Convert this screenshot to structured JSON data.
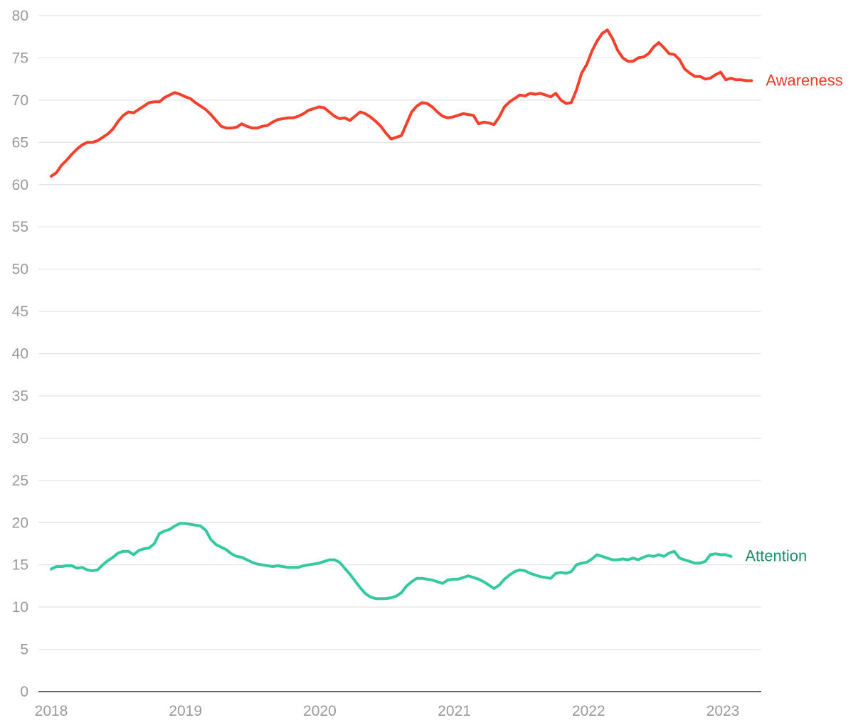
{
  "chart_data": {
    "type": "line",
    "title": "",
    "xlabel": "",
    "ylabel": "",
    "ylim": [
      0,
      80
    ],
    "xlim": [
      "2018-01-01",
      "2023-03-31"
    ],
    "yticks": [
      "0",
      "5",
      "10",
      "15",
      "20",
      "25",
      "30",
      "35",
      "40",
      "45",
      "50",
      "55",
      "60",
      "65",
      "70",
      "75",
      "80"
    ],
    "xticks": [
      {
        "date": "2018-01-01",
        "label": "2018"
      },
      {
        "date": "2019-01-01",
        "label": "2019"
      },
      {
        "date": "2020-01-01",
        "label": "2020"
      },
      {
        "date": "2021-01-01",
        "label": "2021"
      },
      {
        "date": "2022-01-01",
        "label": "2022"
      },
      {
        "date": "2023-01-01",
        "label": "2023"
      }
    ],
    "grid": "horizontal",
    "series": [
      {
        "name": "Awareness",
        "color": "#f5402c",
        "label_color": "#e83a27",
        "points": [
          [
            "2018-01-01",
            61.0
          ],
          [
            "2018-01-15",
            61.4
          ],
          [
            "2018-01-29",
            62.3
          ],
          [
            "2018-02-12",
            62.9
          ],
          [
            "2018-02-26",
            63.6
          ],
          [
            "2018-03-12",
            64.2
          ],
          [
            "2018-03-26",
            64.7
          ],
          [
            "2018-04-09",
            65.0
          ],
          [
            "2018-04-23",
            65.0
          ],
          [
            "2018-05-07",
            65.2
          ],
          [
            "2018-05-21",
            65.6
          ],
          [
            "2018-06-04",
            66.0
          ],
          [
            "2018-06-18",
            66.6
          ],
          [
            "2018-07-02",
            67.5
          ],
          [
            "2018-07-16",
            68.2
          ],
          [
            "2018-07-30",
            68.6
          ],
          [
            "2018-08-13",
            68.5
          ],
          [
            "2018-08-27",
            68.9
          ],
          [
            "2018-09-10",
            69.3
          ],
          [
            "2018-09-24",
            69.7
          ],
          [
            "2018-10-08",
            69.8
          ],
          [
            "2018-10-22",
            69.8
          ],
          [
            "2018-11-05",
            70.3
          ],
          [
            "2018-11-19",
            70.6
          ],
          [
            "2018-12-03",
            70.9
          ],
          [
            "2018-12-17",
            70.7
          ],
          [
            "2018-12-31",
            70.4
          ],
          [
            "2019-01-14",
            70.2
          ],
          [
            "2019-01-28",
            69.7
          ],
          [
            "2019-02-11",
            69.3
          ],
          [
            "2019-02-25",
            68.9
          ],
          [
            "2019-03-11",
            68.3
          ],
          [
            "2019-03-25",
            67.6
          ],
          [
            "2019-04-08",
            66.9
          ],
          [
            "2019-04-22",
            66.7
          ],
          [
            "2019-05-06",
            66.7
          ],
          [
            "2019-05-20",
            66.8
          ],
          [
            "2019-06-03",
            67.2
          ],
          [
            "2019-06-17",
            66.9
          ],
          [
            "2019-07-01",
            66.7
          ],
          [
            "2019-07-15",
            66.7
          ],
          [
            "2019-07-29",
            66.9
          ],
          [
            "2019-08-12",
            67.0
          ],
          [
            "2019-08-26",
            67.4
          ],
          [
            "2019-09-09",
            67.7
          ],
          [
            "2019-09-23",
            67.8
          ],
          [
            "2019-10-07",
            67.9
          ],
          [
            "2019-10-21",
            67.9
          ],
          [
            "2019-11-04",
            68.1
          ],
          [
            "2019-11-18",
            68.4
          ],
          [
            "2019-12-02",
            68.8
          ],
          [
            "2019-12-16",
            69.0
          ],
          [
            "2019-12-30",
            69.2
          ],
          [
            "2020-01-13",
            69.1
          ],
          [
            "2020-01-27",
            68.6
          ],
          [
            "2020-02-10",
            68.1
          ],
          [
            "2020-02-24",
            67.8
          ],
          [
            "2020-03-09",
            67.9
          ],
          [
            "2020-03-23",
            67.6
          ],
          [
            "2020-04-06",
            68.1
          ],
          [
            "2020-04-20",
            68.6
          ],
          [
            "2020-05-04",
            68.4
          ],
          [
            "2020-05-18",
            68.0
          ],
          [
            "2020-06-01",
            67.5
          ],
          [
            "2020-06-15",
            66.9
          ],
          [
            "2020-06-29",
            66.1
          ],
          [
            "2020-07-13",
            65.4
          ],
          [
            "2020-07-27",
            65.6
          ],
          [
            "2020-08-10",
            65.8
          ],
          [
            "2020-08-24",
            67.2
          ],
          [
            "2020-09-07",
            68.6
          ],
          [
            "2020-09-21",
            69.3
          ],
          [
            "2020-10-05",
            69.7
          ],
          [
            "2020-10-19",
            69.6
          ],
          [
            "2020-11-02",
            69.2
          ],
          [
            "2020-11-16",
            68.6
          ],
          [
            "2020-11-30",
            68.1
          ],
          [
            "2020-12-14",
            67.9
          ],
          [
            "2020-12-28",
            68.0
          ],
          [
            "2021-01-11",
            68.2
          ],
          [
            "2021-01-25",
            68.4
          ],
          [
            "2021-02-08",
            68.3
          ],
          [
            "2021-02-22",
            68.2
          ],
          [
            "2021-03-08",
            67.2
          ],
          [
            "2021-03-22",
            67.4
          ],
          [
            "2021-04-05",
            67.3
          ],
          [
            "2021-04-19",
            67.1
          ],
          [
            "2021-05-03",
            68.0
          ],
          [
            "2021-05-17",
            69.2
          ],
          [
            "2021-05-31",
            69.8
          ],
          [
            "2021-06-14",
            70.2
          ],
          [
            "2021-06-28",
            70.6
          ],
          [
            "2021-07-12",
            70.5
          ],
          [
            "2021-07-26",
            70.8
          ],
          [
            "2021-08-09",
            70.7
          ],
          [
            "2021-08-23",
            70.8
          ],
          [
            "2021-09-06",
            70.6
          ],
          [
            "2021-09-20",
            70.4
          ],
          [
            "2021-10-04",
            70.8
          ],
          [
            "2021-10-18",
            70.0
          ],
          [
            "2021-11-01",
            69.6
          ],
          [
            "2021-11-15",
            69.7
          ],
          [
            "2021-11-29",
            71.2
          ],
          [
            "2021-12-13",
            73.2
          ],
          [
            "2021-12-27",
            74.2
          ],
          [
            "2022-01-10",
            75.8
          ],
          [
            "2022-01-24",
            77.0
          ],
          [
            "2022-02-07",
            77.9
          ],
          [
            "2022-02-21",
            78.3
          ],
          [
            "2022-03-07",
            77.3
          ],
          [
            "2022-03-21",
            75.9
          ],
          [
            "2022-04-04",
            75.0
          ],
          [
            "2022-04-18",
            74.6
          ],
          [
            "2022-05-02",
            74.6
          ],
          [
            "2022-05-16",
            75.0
          ],
          [
            "2022-05-30",
            75.1
          ],
          [
            "2022-06-13",
            75.5
          ],
          [
            "2022-06-27",
            76.3
          ],
          [
            "2022-07-11",
            76.8
          ],
          [
            "2022-07-25",
            76.2
          ],
          [
            "2022-08-08",
            75.5
          ],
          [
            "2022-08-22",
            75.4
          ],
          [
            "2022-09-05",
            74.8
          ],
          [
            "2022-09-19",
            73.7
          ],
          [
            "2022-10-03",
            73.2
          ],
          [
            "2022-10-17",
            72.8
          ],
          [
            "2022-10-31",
            72.8
          ],
          [
            "2022-11-14",
            72.5
          ],
          [
            "2022-11-28",
            72.6
          ],
          [
            "2022-12-12",
            73.0
          ],
          [
            "2022-12-26",
            73.3
          ],
          [
            "2023-01-09",
            72.4
          ],
          [
            "2023-01-23",
            72.6
          ],
          [
            "2023-02-06",
            72.4
          ],
          [
            "2023-02-20",
            72.4
          ],
          [
            "2023-03-06",
            72.3
          ],
          [
            "2023-03-20",
            72.3
          ]
        ]
      },
      {
        "name": "Attention",
        "color": "#34c9a0",
        "label_color": "#1a9070",
        "points": [
          [
            "2018-01-01",
            14.5
          ],
          [
            "2018-01-15",
            14.8
          ],
          [
            "2018-01-29",
            14.8
          ],
          [
            "2018-02-12",
            14.9
          ],
          [
            "2018-02-26",
            14.9
          ],
          [
            "2018-03-12",
            14.6
          ],
          [
            "2018-03-26",
            14.7
          ],
          [
            "2018-04-09",
            14.4
          ],
          [
            "2018-04-23",
            14.3
          ],
          [
            "2018-05-07",
            14.4
          ],
          [
            "2018-05-21",
            15.0
          ],
          [
            "2018-06-04",
            15.5
          ],
          [
            "2018-06-18",
            15.9
          ],
          [
            "2018-07-02",
            16.4
          ],
          [
            "2018-07-16",
            16.6
          ],
          [
            "2018-07-30",
            16.6
          ],
          [
            "2018-08-13",
            16.2
          ],
          [
            "2018-08-27",
            16.7
          ],
          [
            "2018-09-10",
            16.9
          ],
          [
            "2018-09-24",
            17.0
          ],
          [
            "2018-10-08",
            17.5
          ],
          [
            "2018-10-22",
            18.7
          ],
          [
            "2018-11-05",
            19.0
          ],
          [
            "2018-11-19",
            19.2
          ],
          [
            "2018-12-03",
            19.6
          ],
          [
            "2018-12-17",
            19.9
          ],
          [
            "2018-12-31",
            19.9
          ],
          [
            "2019-01-14",
            19.8
          ],
          [
            "2019-01-28",
            19.7
          ],
          [
            "2019-02-11",
            19.6
          ],
          [
            "2019-02-25",
            19.1
          ],
          [
            "2019-03-11",
            18.0
          ],
          [
            "2019-03-25",
            17.4
          ],
          [
            "2019-04-08",
            17.1
          ],
          [
            "2019-04-22",
            16.8
          ],
          [
            "2019-05-06",
            16.3
          ],
          [
            "2019-05-20",
            16.0
          ],
          [
            "2019-06-03",
            15.9
          ],
          [
            "2019-06-17",
            15.6
          ],
          [
            "2019-07-01",
            15.3
          ],
          [
            "2019-07-15",
            15.1
          ],
          [
            "2019-07-29",
            15.0
          ],
          [
            "2019-08-12",
            14.9
          ],
          [
            "2019-08-26",
            14.8
          ],
          [
            "2019-09-09",
            14.9
          ],
          [
            "2019-09-23",
            14.8
          ],
          [
            "2019-10-07",
            14.7
          ],
          [
            "2019-10-21",
            14.7
          ],
          [
            "2019-11-04",
            14.7
          ],
          [
            "2019-11-18",
            14.9
          ],
          [
            "2019-12-02",
            15.0
          ],
          [
            "2019-12-16",
            15.1
          ],
          [
            "2019-12-30",
            15.2
          ],
          [
            "2020-01-13",
            15.4
          ],
          [
            "2020-01-27",
            15.6
          ],
          [
            "2020-02-10",
            15.6
          ],
          [
            "2020-02-24",
            15.3
          ],
          [
            "2020-03-09",
            14.6
          ],
          [
            "2020-03-23",
            13.9
          ],
          [
            "2020-04-06",
            13.1
          ],
          [
            "2020-04-20",
            12.3
          ],
          [
            "2020-05-04",
            11.6
          ],
          [
            "2020-05-18",
            11.2
          ],
          [
            "2020-06-01",
            11.0
          ],
          [
            "2020-06-15",
            11.0
          ],
          [
            "2020-06-29",
            11.0
          ],
          [
            "2020-07-13",
            11.1
          ],
          [
            "2020-07-27",
            11.3
          ],
          [
            "2020-08-10",
            11.7
          ],
          [
            "2020-08-24",
            12.5
          ],
          [
            "2020-09-07",
            13.0
          ],
          [
            "2020-09-21",
            13.4
          ],
          [
            "2020-10-05",
            13.4
          ],
          [
            "2020-10-19",
            13.3
          ],
          [
            "2020-11-02",
            13.2
          ],
          [
            "2020-11-16",
            13.0
          ],
          [
            "2020-11-30",
            12.8
          ],
          [
            "2020-12-14",
            13.2
          ],
          [
            "2020-12-28",
            13.3
          ],
          [
            "2021-01-11",
            13.3
          ],
          [
            "2021-01-25",
            13.5
          ],
          [
            "2021-02-08",
            13.7
          ],
          [
            "2021-02-22",
            13.5
          ],
          [
            "2021-03-08",
            13.3
          ],
          [
            "2021-03-22",
            13.0
          ],
          [
            "2021-04-05",
            12.6
          ],
          [
            "2021-04-19",
            12.2
          ],
          [
            "2021-05-03",
            12.6
          ],
          [
            "2021-05-17",
            13.3
          ],
          [
            "2021-05-31",
            13.8
          ],
          [
            "2021-06-14",
            14.2
          ],
          [
            "2021-06-28",
            14.4
          ],
          [
            "2021-07-12",
            14.3
          ],
          [
            "2021-07-26",
            14.0
          ],
          [
            "2021-08-09",
            13.8
          ],
          [
            "2021-08-23",
            13.6
          ],
          [
            "2021-09-06",
            13.5
          ],
          [
            "2021-09-20",
            13.4
          ],
          [
            "2021-10-04",
            14.0
          ],
          [
            "2021-10-18",
            14.1
          ],
          [
            "2021-11-01",
            14.0
          ],
          [
            "2021-11-15",
            14.2
          ],
          [
            "2021-11-29",
            15.0
          ],
          [
            "2021-12-13",
            15.2
          ],
          [
            "2021-12-27",
            15.3
          ],
          [
            "2022-01-10",
            15.7
          ],
          [
            "2022-01-24",
            16.2
          ],
          [
            "2022-02-07",
            16.0
          ],
          [
            "2022-02-21",
            15.8
          ],
          [
            "2022-03-07",
            15.6
          ],
          [
            "2022-03-21",
            15.6
          ],
          [
            "2022-04-04",
            15.7
          ],
          [
            "2022-04-18",
            15.6
          ],
          [
            "2022-05-02",
            15.8
          ],
          [
            "2022-05-16",
            15.6
          ],
          [
            "2022-05-30",
            15.9
          ],
          [
            "2022-06-13",
            16.1
          ],
          [
            "2022-06-27",
            16.0
          ],
          [
            "2022-07-11",
            16.2
          ],
          [
            "2022-07-25",
            16.0
          ],
          [
            "2022-08-08",
            16.4
          ],
          [
            "2022-08-22",
            16.6
          ],
          [
            "2022-09-05",
            15.8
          ],
          [
            "2022-09-19",
            15.6
          ],
          [
            "2022-10-03",
            15.4
          ],
          [
            "2022-10-17",
            15.2
          ],
          [
            "2022-10-31",
            15.2
          ],
          [
            "2022-11-14",
            15.4
          ],
          [
            "2022-11-28",
            16.2
          ],
          [
            "2022-12-12",
            16.3
          ],
          [
            "2022-12-26",
            16.2
          ],
          [
            "2023-01-09",
            16.2
          ],
          [
            "2023-01-23",
            16.0
          ]
        ]
      }
    ]
  }
}
